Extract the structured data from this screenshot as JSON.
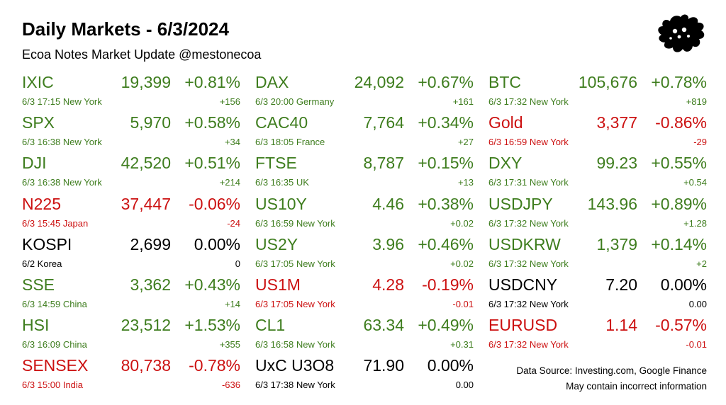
{
  "header": {
    "title": "Daily Markets - 6/3/2024",
    "subtitle": "Ecoa Notes Market Update @mestonecoa"
  },
  "colors": {
    "up": "#3e7d1e",
    "down": "#cc1111",
    "flat": "#000000"
  },
  "logo": {
    "icon": "ink-splat-logo-icon"
  },
  "columns": [
    {
      "items": [
        {
          "symbol": "IXIC",
          "price": "19,399",
          "pct": "+0.81%",
          "meta": "6/3 17:15 New York",
          "change": "+156",
          "trend": "up"
        },
        {
          "symbol": "SPX",
          "price": "5,970",
          "pct": "+0.58%",
          "meta": "6/3 16:38 New York",
          "change": "+34",
          "trend": "up"
        },
        {
          "symbol": "DJI",
          "price": "42,520",
          "pct": "+0.51%",
          "meta": "6/3 16:38 New York",
          "change": "+214",
          "trend": "up"
        },
        {
          "symbol": "N225",
          "price": "37,447",
          "pct": "-0.06%",
          "meta": "6/3 15:45 Japan",
          "change": "-24",
          "trend": "down"
        },
        {
          "symbol": "KOSPI",
          "price": "2,699",
          "pct": "0.00%",
          "meta": "6/2  Korea",
          "change": "0",
          "trend": "flat"
        },
        {
          "symbol": "SSE",
          "price": "3,362",
          "pct": "+0.43%",
          "meta": "6/3 14:59 China",
          "change": "+14",
          "trend": "up"
        },
        {
          "symbol": "HSI",
          "price": "23,512",
          "pct": "+1.53%",
          "meta": "6/3 16:09 China",
          "change": "+355",
          "trend": "up"
        },
        {
          "symbol": "SENSEX",
          "price": "80,738",
          "pct": "-0.78%",
          "meta": "6/3 15:00 India",
          "change": "-636",
          "trend": "down"
        }
      ]
    },
    {
      "items": [
        {
          "symbol": "DAX",
          "price": "24,092",
          "pct": "+0.67%",
          "meta": "6/3 20:00 Germany",
          "change": "+161",
          "trend": "up"
        },
        {
          "symbol": "CAC40",
          "price": "7,764",
          "pct": "+0.34%",
          "meta": "6/3 18:05 France",
          "change": "+27",
          "trend": "up"
        },
        {
          "symbol": "FTSE",
          "price": "8,787",
          "pct": "+0.15%",
          "meta": "6/3 16:35 UK",
          "change": "+13",
          "trend": "up"
        },
        {
          "symbol": "US10Y",
          "price": "4.46",
          "pct": "+0.38%",
          "meta": "6/3 16:59 New York",
          "change": "+0.02",
          "trend": "up"
        },
        {
          "symbol": "US2Y",
          "price": "3.96",
          "pct": "+0.46%",
          "meta": "6/3 17:05 New York",
          "change": "+0.02",
          "trend": "up"
        },
        {
          "symbol": "US1M",
          "price": "4.28",
          "pct": "-0.19%",
          "meta": "6/3 17:05 New York",
          "change": "-0.01",
          "trend": "down"
        },
        {
          "symbol": "CL1",
          "price": "63.34",
          "pct": "+0.49%",
          "meta": "6/3 16:58 New York",
          "change": "+0.31",
          "trend": "up"
        },
        {
          "symbol": "UxC U3O8",
          "price": "71.90",
          "pct": "0.00%",
          "meta": "6/3 17:38 New York",
          "change": "0.00",
          "trend": "flat"
        }
      ]
    },
    {
      "items": [
        {
          "symbol": "BTC",
          "price": "105,676",
          "pct": "+0.78%",
          "meta": "6/3 17:32 New York",
          "change": "+819",
          "trend": "up"
        },
        {
          "symbol": "Gold",
          "price": "3,377",
          "pct": "-0.86%",
          "meta": "6/3 16:59 New York",
          "change": "-29",
          "trend": "down"
        },
        {
          "symbol": "DXY",
          "price": "99.23",
          "pct": "+0.55%",
          "meta": "6/3 17:31 New York",
          "change": "+0.54",
          "trend": "up"
        },
        {
          "symbol": "USDJPY",
          "price": "143.96",
          "pct": "+0.89%",
          "meta": "6/3 17:32 New York",
          "change": "+1.28",
          "trend": "up"
        },
        {
          "symbol": "USDKRW",
          "price": "1,379",
          "pct": "+0.14%",
          "meta": "6/3 17:32 New York",
          "change": "+2",
          "trend": "up"
        },
        {
          "symbol": "USDCNY",
          "price": "7.20",
          "pct": "0.00%",
          "meta": "6/3 17:32 New York",
          "change": "0.00",
          "trend": "flat"
        },
        {
          "symbol": "EURUSD",
          "price": "1.14",
          "pct": "-0.57%",
          "meta": "6/3 17:32 New York",
          "change": "-0.01",
          "trend": "down"
        }
      ]
    }
  ],
  "footer": {
    "source": "Data Source: Investing.com, Google Finance",
    "disclaimer": "May contain incorrect information"
  }
}
